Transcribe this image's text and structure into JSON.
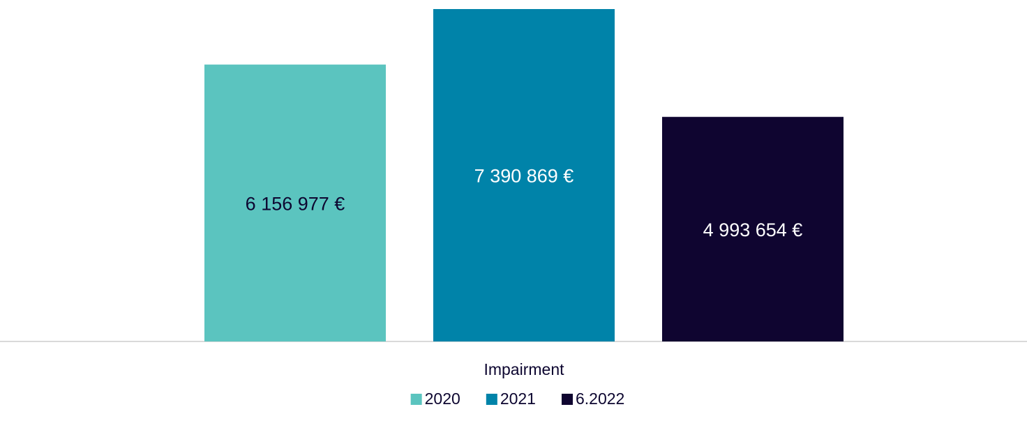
{
  "chart_data": {
    "type": "bar",
    "categories": [
      "Impairment"
    ],
    "series": [
      {
        "name": "2020",
        "color": "#5bc4bf",
        "values": [
          6156977
        ],
        "value_labels": [
          "6 156 977 €"
        ]
      },
      {
        "name": "2021",
        "color": "#0083a9",
        "values": [
          7390869
        ],
        "value_labels": [
          "7 390 869 €"
        ]
      },
      {
        "name": "6.2022",
        "color": "#0f0530",
        "values": [
          4993654
        ],
        "value_labels": [
          "4 993 654 €"
        ]
      }
    ],
    "legend": "bottom"
  }
}
